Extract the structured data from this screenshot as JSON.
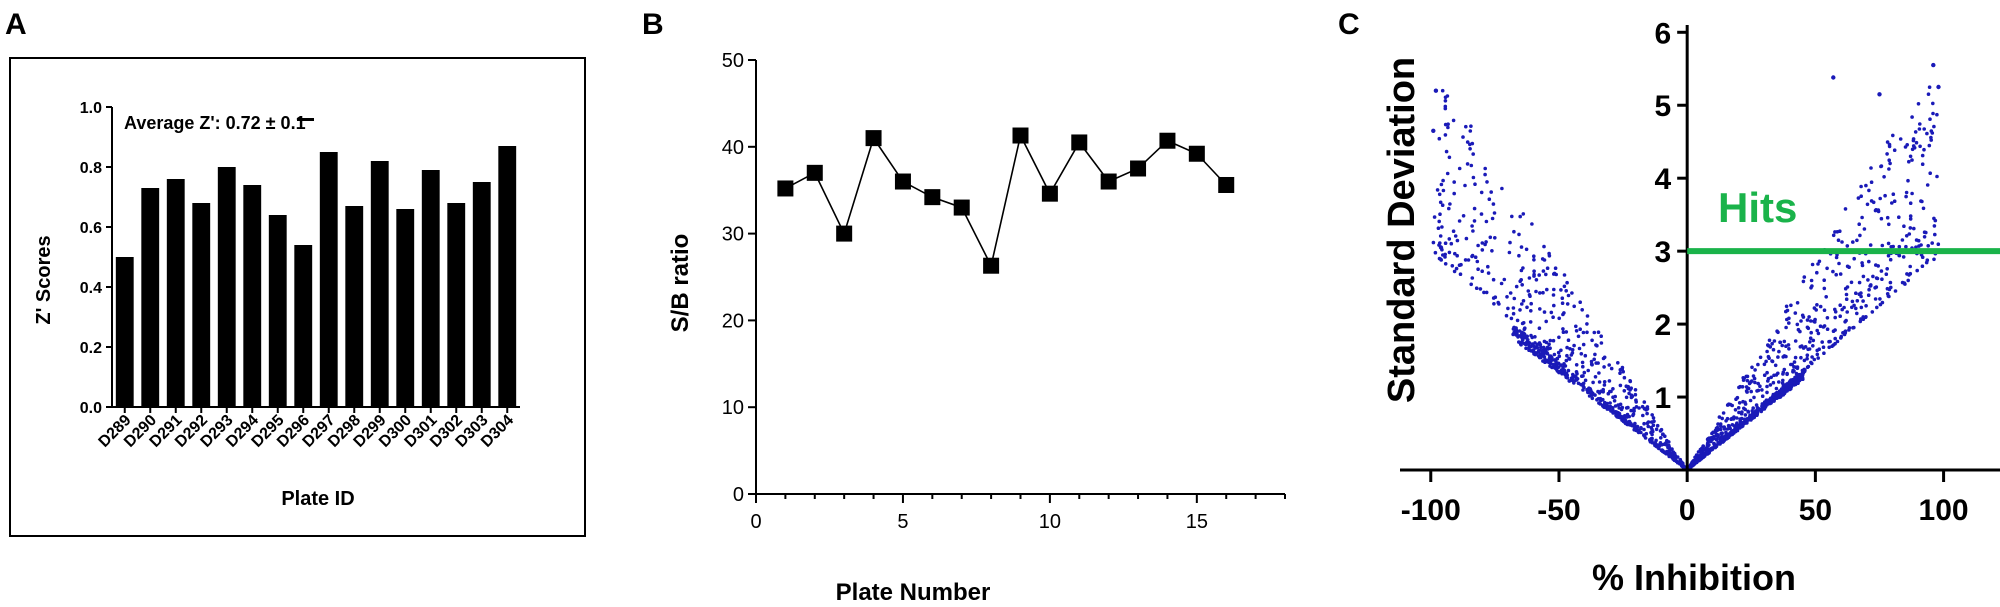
{
  "figure": {
    "panel_labels": [
      "A",
      "B",
      "C"
    ]
  },
  "colors": {
    "bar": "#000000",
    "line": "#000000",
    "scatter": "#1a1ab8",
    "threshold": "#1ab34a"
  },
  "chart_data": [
    {
      "type": "bar",
      "panel": "A",
      "title": "",
      "xlabel": "Plate ID",
      "ylabel": "Z' Scores",
      "annotation": "Average Z': 0.72 ± 0.1",
      "categories": [
        "D289",
        "D290",
        "D291",
        "D292",
        "D293",
        "D294",
        "D295",
        "D296",
        "D297",
        "D298",
        "D299",
        "D300",
        "D301",
        "D302",
        "D303",
        "D304"
      ],
      "values": [
        0.5,
        0.73,
        0.76,
        0.68,
        0.8,
        0.74,
        0.64,
        0.54,
        0.85,
        0.67,
        0.82,
        0.66,
        0.79,
        0.68,
        0.75,
        0.87
      ],
      "ylim": [
        0,
        1.0
      ],
      "yticks": [
        0.0,
        0.2,
        0.4,
        0.6,
        0.8,
        1.0
      ],
      "ytick_labels": [
        "0.0",
        "0.2",
        "0.4",
        "0.6",
        "0.8",
        "1.0"
      ],
      "grid": false,
      "frame": true
    },
    {
      "type": "line",
      "panel": "B",
      "title": "",
      "xlabel": "Plate Number",
      "ylabel": "S/B ratio",
      "marker": "square",
      "x": [
        1,
        2,
        3,
        4,
        5,
        6,
        7,
        8,
        9,
        10,
        11,
        12,
        13,
        14,
        15,
        16
      ],
      "y": [
        35.2,
        37.0,
        30.0,
        41.0,
        36.0,
        34.2,
        33.0,
        26.3,
        41.3,
        34.6,
        40.5,
        36.0,
        37.5,
        40.7,
        39.2,
        35.6
      ],
      "xlim": [
        0,
        18
      ],
      "ylim": [
        0,
        50
      ],
      "xticks": [
        0,
        5,
        10,
        15
      ],
      "xtick_labels": [
        "0",
        "5",
        "10",
        "15"
      ],
      "yticks": [
        0,
        10,
        20,
        30,
        40,
        50
      ],
      "ytick_labels": [
        "0",
        "10",
        "20",
        "30",
        "40",
        "50"
      ],
      "grid": false
    },
    {
      "type": "scatter",
      "panel": "C",
      "title": "",
      "xlabel": "% Inhibition",
      "ylabel": "Standard Deviation",
      "threshold_label": "Hits",
      "threshold_y": 3,
      "point_count_approx": 2000,
      "description_of_shape": "V-shaped distribution: points fan out from the origin (0,0) upward to the left (negative inhibition) and right (positive inhibition); standard deviation roughly proportional to |% inhibition| with slopes between ~0.027 and ~0.055 per percent; densest near the origin",
      "extreme_points": [
        {
          "x": -98,
          "y": 5.2
        },
        {
          "x": -99,
          "y": 4.65
        },
        {
          "x": -96,
          "y": 3.05
        },
        {
          "x": 57,
          "y": 5.38
        },
        {
          "x": 75,
          "y": 5.15
        },
        {
          "x": 96,
          "y": 5.55
        },
        {
          "x": 98,
          "y": 5.25
        }
      ],
      "xlim": [
        -112,
        122
      ],
      "ylim": [
        0,
        6.1
      ],
      "xticks": [
        -100,
        -50,
        0,
        50,
        100
      ],
      "xtick_labels": [
        "-100",
        "-50",
        "0",
        "50",
        "100"
      ],
      "yticks": [
        1,
        2,
        3,
        4,
        5,
        6
      ],
      "ytick_labels": [
        "1",
        "2",
        "3",
        "4",
        "5",
        "6"
      ],
      "grid": false
    }
  ]
}
